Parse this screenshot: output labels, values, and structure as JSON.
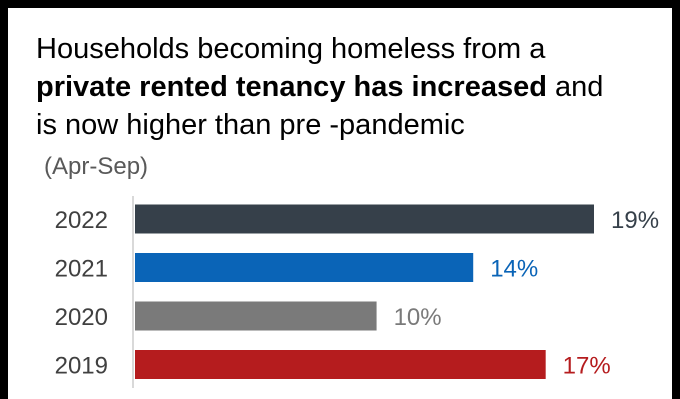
{
  "heading": {
    "line1": "Households becoming homeless from a",
    "bold": "private rented tenancy has increased",
    "after_bold": " and",
    "line3": "is now higher than pre  -pandemic"
  },
  "period": "(Apr-Sep)",
  "chart_data": {
    "type": "bar",
    "orientation": "horizontal",
    "categories": [
      "2022",
      "2021",
      "2020",
      "2019"
    ],
    "values": [
      19,
      14,
      10,
      17
    ],
    "value_labels": [
      "19%",
      "14%",
      "10%",
      "17%"
    ],
    "colors": [
      "#36404A",
      "#0A64B7",
      "#7A7A7A",
      "#B51C1E"
    ],
    "label_colors": [
      "#36404A",
      "#0A64B7",
      "#7A7A7A",
      "#B51C1E"
    ],
    "xlim": [
      0,
      19
    ],
    "grid": false,
    "legend": "none"
  }
}
